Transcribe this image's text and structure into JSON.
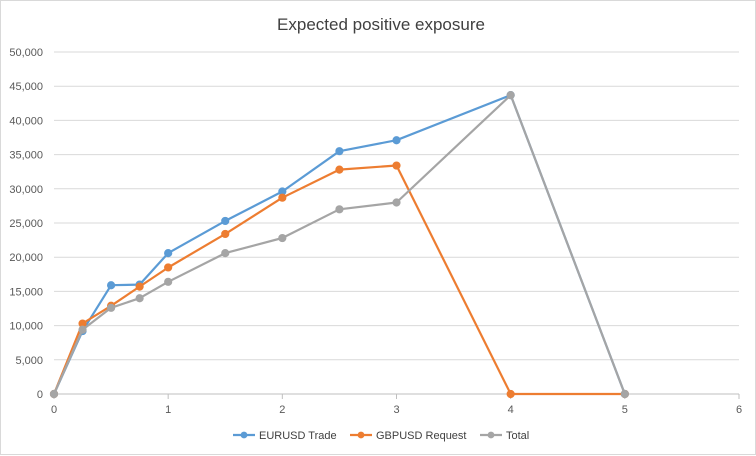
{
  "chart_data": {
    "type": "scatter",
    "title": "Expected positive exposure",
    "xlabel": "",
    "ylabel": "",
    "xlim": [
      0,
      6
    ],
    "ylim": [
      0,
      50000
    ],
    "xticks": [
      0,
      1,
      2,
      3,
      4,
      5,
      6
    ],
    "yticks": [
      0,
      5000,
      10000,
      15000,
      20000,
      25000,
      30000,
      35000,
      40000,
      45000,
      50000
    ],
    "ytick_labels": [
      "0",
      "5,000",
      "10,000",
      "15,000",
      "20,000",
      "25,000",
      "30,000",
      "35,000",
      "40,000",
      "45,000",
      "50,000"
    ],
    "grid": "horizontal",
    "legend_position": "bottom",
    "series": [
      {
        "name": "EURUSD Trade",
        "color": "#5b9bd5",
        "x": [
          0,
          0.25,
          0.5,
          0.75,
          1,
          1.5,
          2,
          2.5,
          3,
          4,
          5
        ],
        "y": [
          0,
          9200,
          15900,
          16000,
          20600,
          25300,
          29600,
          35500,
          37100,
          43700,
          0
        ]
      },
      {
        "name": "GBPUSD Request",
        "color": "#ed7d31",
        "x": [
          0,
          0.25,
          0.5,
          0.75,
          1,
          1.5,
          2,
          2.5,
          3,
          4,
          5
        ],
        "y": [
          0,
          10300,
          12900,
          15700,
          18500,
          23400,
          28700,
          32800,
          33400,
          0,
          0
        ]
      },
      {
        "name": "Total",
        "color": "#a5a5a5",
        "x": [
          0,
          0.25,
          0.5,
          0.75,
          1,
          1.5,
          2,
          2.5,
          3,
          4,
          5
        ],
        "y": [
          0,
          9400,
          12600,
          14000,
          16400,
          20600,
          22800,
          27000,
          28000,
          43700,
          0
        ]
      }
    ]
  }
}
